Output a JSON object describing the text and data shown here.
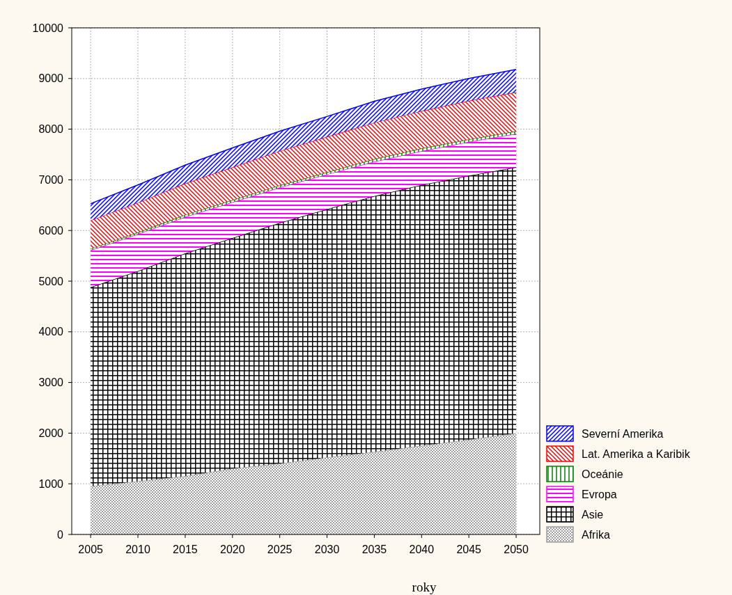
{
  "chart_data": {
    "type": "area",
    "stacked": true,
    "xlabel": "roky",
    "x": [
      2005,
      2010,
      2015,
      2020,
      2025,
      2030,
      2035,
      2040,
      2045,
      2050
    ],
    "xlim": [
      2003,
      2052.5
    ],
    "xticks": [
      2005,
      2010,
      2015,
      2020,
      2025,
      2030,
      2035,
      2040,
      2045,
      2050
    ],
    "ylim": [
      0,
      10000
    ],
    "yticks": [
      0,
      1000,
      2000,
      3000,
      4000,
      5000,
      6000,
      7000,
      8000,
      9000,
      10000
    ],
    "grid": true,
    "legend": "bottom right",
    "series": [
      {
        "name": "Afrika",
        "color": "#a0a0a0",
        "values": [
          950,
          1050,
          1150,
          1300,
          1400,
          1520,
          1630,
          1750,
          1870,
          2000
        ]
      },
      {
        "name": "Asie",
        "color": "#000000",
        "values": [
          3930,
          4150,
          4400,
          4550,
          4750,
          4900,
          5050,
          5150,
          5210,
          5250
        ]
      },
      {
        "name": "Evropa",
        "color": "#ff00ff",
        "values": [
          730,
          730,
          720,
          710,
          700,
          690,
          680,
          670,
          670,
          660
        ]
      },
      {
        "name": "Oceánie",
        "color": "#008000",
        "values": [
          30,
          30,
          40,
          40,
          40,
          40,
          50,
          50,
          50,
          50
        ]
      },
      {
        "name": "Lat. Amerika a Karibik",
        "color": "#ff0000",
        "values": [
          560,
          590,
          620,
          650,
          680,
          700,
          720,
          740,
          760,
          770
        ]
      },
      {
        "name": "Severní Amerika",
        "color": "#0000ff",
        "values": [
          330,
          350,
          360,
          380,
          390,
          400,
          420,
          430,
          440,
          450
        ]
      }
    ]
  }
}
